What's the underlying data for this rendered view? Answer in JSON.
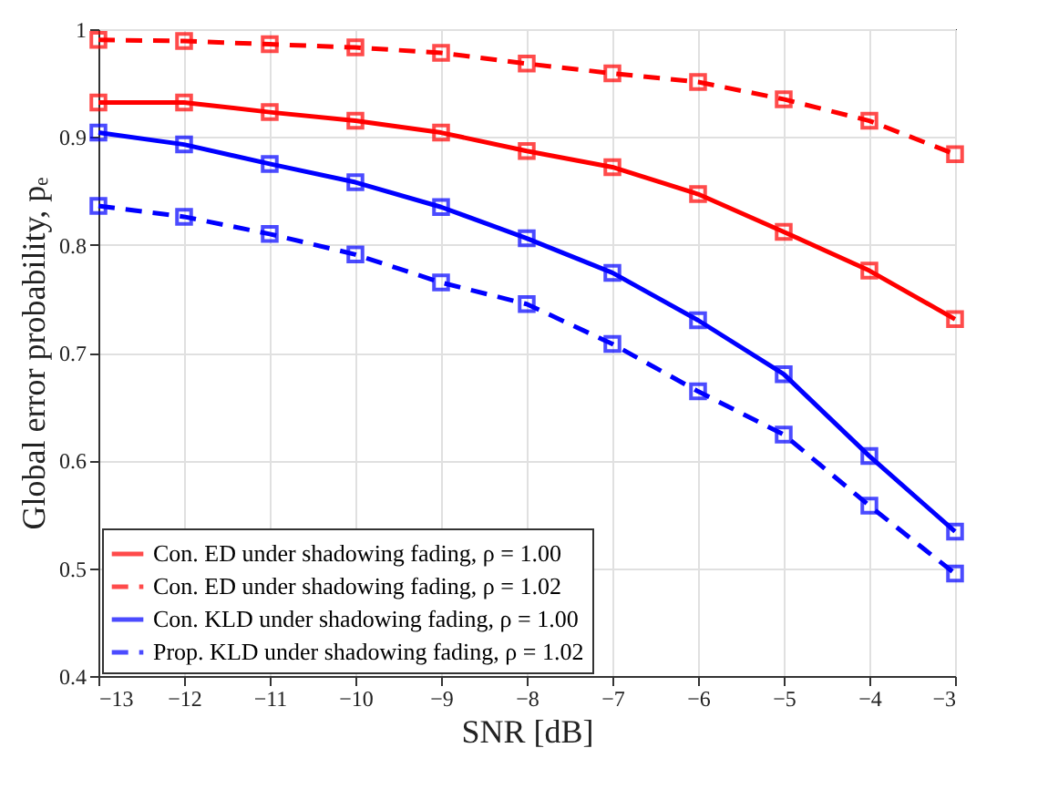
{
  "chart_data": {
    "type": "line",
    "xlabel": "SNR [dB]",
    "ylabel": "Global error probability, pₑ",
    "x": [
      -13,
      -12,
      -11,
      -10,
      -9,
      -8,
      -7,
      -6,
      -5,
      -4,
      -3
    ],
    "series": [
      {
        "name": "Con. ED under shadowing fading, ρ = 1.00",
        "color": "#ff0000",
        "line_style": "solid",
        "values": [
          0.932,
          0.932,
          0.923,
          0.915,
          0.904,
          0.887,
          0.872,
          0.847,
          0.812,
          0.776,
          0.731
        ]
      },
      {
        "name": "Con. ED under shadowing fading, ρ = 1.02",
        "color": "#ff0000",
        "line_style": "dashed",
        "values": [
          0.99,
          0.989,
          0.986,
          0.983,
          0.978,
          0.968,
          0.959,
          0.951,
          0.935,
          0.915,
          0.884
        ]
      },
      {
        "name": "Con. KLD under shadowing fading, ρ = 1.00",
        "color": "#0000ff",
        "line_style": "solid",
        "values": [
          0.904,
          0.893,
          0.875,
          0.858,
          0.835,
          0.806,
          0.774,
          0.73,
          0.68,
          0.604,
          0.534
        ]
      },
      {
        "name": "Prop. KLD under shadowing fading, ρ = 1.02",
        "color": "#0000ff",
        "line_style": "dashed",
        "values": [
          0.836,
          0.826,
          0.81,
          0.791,
          0.765,
          0.745,
          0.708,
          0.664,
          0.624,
          0.558,
          0.495
        ]
      }
    ],
    "xlim": [
      -13,
      -3
    ],
    "xticks": [
      -13,
      -12,
      -11,
      -10,
      -9,
      -8,
      -7,
      -6,
      -5,
      -4,
      -3
    ],
    "ylim": [
      0.4,
      1
    ],
    "yticks": [
      0.4,
      0.5,
      0.6,
      0.7,
      0.8,
      0.9,
      {
        "value": 1,
        "label": "1"
      }
    ],
    "grid": true,
    "legend": "bottom left",
    "marker": "square"
  }
}
